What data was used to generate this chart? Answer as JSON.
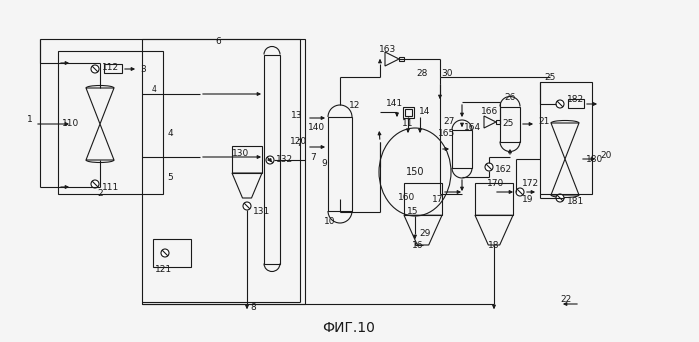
{
  "title": "ФИГ.10",
  "bg_color": "#f5f5f5",
  "line_color": "#1a1a1a",
  "fig_width": 6.99,
  "fig_height": 3.42
}
